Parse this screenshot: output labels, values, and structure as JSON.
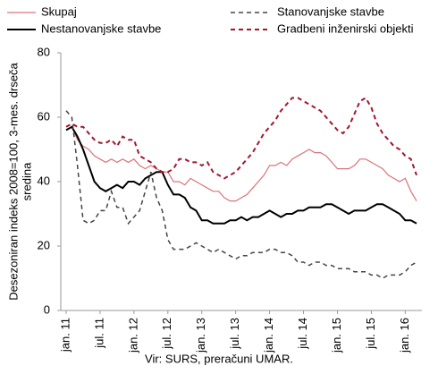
{
  "chart_data": {
    "type": "line",
    "ylabel": [
      "Desezoniran indeks 2008=100, 3-mes. drseča",
      "sredina"
    ],
    "source": "Vir: SURS, preračuni UMAR.",
    "categories": [
      "jan. 11",
      null,
      null,
      null,
      null,
      null,
      "jul. 11",
      null,
      null,
      null,
      null,
      null,
      "jan. 12",
      null,
      null,
      null,
      null,
      null,
      "jul. 12",
      null,
      null,
      null,
      null,
      null,
      "jan. 13",
      null,
      null,
      null,
      null,
      null,
      "jul. 13",
      null,
      null,
      null,
      null,
      null,
      "jan. 14",
      null,
      null,
      null,
      null,
      null,
      "jul. 14",
      null,
      null,
      null,
      null,
      null,
      "jan. 15",
      null,
      null,
      null,
      null,
      null,
      "jul. 15",
      null,
      null,
      null,
      null,
      null,
      "jan. 16",
      null,
      null
    ],
    "ylim": [
      0,
      80
    ],
    "yticks": [
      0,
      20,
      40,
      60,
      80
    ],
    "grid": false,
    "series": [
      {
        "name": "Skupaj",
        "color": "#d9737a",
        "dash": false,
        "width": 1.2,
        "values": [
          56,
          57,
          53,
          51,
          50,
          48,
          47,
          46,
          47,
          46,
          47,
          46,
          47,
          45,
          44,
          45,
          44,
          43,
          43,
          40,
          40,
          39,
          41,
          40,
          39,
          38,
          37,
          37,
          35,
          34,
          34,
          35,
          36,
          38,
          40,
          42,
          45,
          45,
          46,
          45,
          47,
          48,
          49,
          50,
          49,
          49,
          48,
          46,
          44,
          44,
          44,
          45,
          47,
          47,
          46,
          45,
          44,
          42,
          41,
          40,
          41,
          37,
          34
        ]
      },
      {
        "name": "Nestanovanjske stavbe",
        "color": "#000000",
        "dash": false,
        "width": 2,
        "values": [
          56,
          57,
          54,
          50,
          45,
          40,
          38,
          37,
          38,
          39,
          38,
          40,
          40,
          39,
          41,
          42,
          43,
          43,
          39,
          36,
          36,
          35,
          32,
          31,
          28,
          28,
          27,
          27,
          27,
          28,
          28,
          29,
          28,
          29,
          29,
          30,
          31,
          30,
          29,
          30,
          30,
          31,
          31,
          32,
          32,
          32,
          33,
          33,
          32,
          31,
          30,
          31,
          31,
          31,
          32,
          33,
          33,
          32,
          31,
          30,
          28,
          28,
          27
        ]
      },
      {
        "name": "Stanovanjske stavbe",
        "color": "#444444",
        "dash": true,
        "width": 1.5,
        "values": [
          62,
          60,
          45,
          28,
          27,
          28,
          31,
          31,
          37,
          32,
          32,
          27,
          29,
          31,
          37,
          43,
          35,
          31,
          22,
          19,
          19,
          19,
          20,
          21,
          20,
          19,
          18,
          19,
          18,
          17,
          16,
          17,
          17,
          18,
          18,
          18,
          19,
          19,
          18,
          18,
          17,
          15,
          15,
          14,
          15,
          15,
          14,
          14,
          13,
          13,
          13,
          12,
          12,
          12,
          11,
          11,
          10,
          11,
          11,
          11,
          12,
          14,
          15
        ]
      },
      {
        "name": "Gradbeni inženirski objekti",
        "color": "#a3162e",
        "dash": true,
        "width": 2,
        "values": [
          57,
          58,
          57,
          57,
          55,
          53,
          52,
          52,
          53,
          51,
          54,
          53,
          53,
          48,
          47,
          46,
          44,
          43,
          43,
          44,
          47,
          47,
          46,
          46,
          45,
          46,
          43,
          42,
          41,
          42,
          43,
          45,
          47,
          49,
          52,
          55,
          57,
          59,
          62,
          64,
          66,
          66,
          65,
          64,
          63,
          62,
          60,
          58,
          56,
          55,
          57,
          61,
          65,
          66,
          63,
          58,
          55,
          53,
          51,
          50,
          48,
          47,
          42
        ]
      }
    ]
  }
}
